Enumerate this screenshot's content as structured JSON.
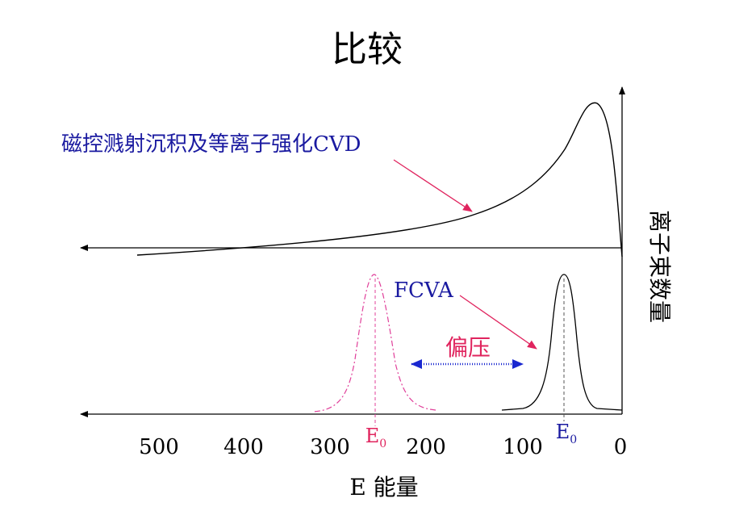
{
  "title": "比较",
  "curve_labels": {
    "magnetron": "磁控溅射沉积及等离子强化CVD",
    "fcva": "FCVA",
    "bias": "偏压"
  },
  "y_axis_label": "离子束数量",
  "x_axis_label": "E 能量",
  "x_ticks": [
    "0",
    "100",
    "200",
    "300",
    "400",
    "500"
  ],
  "e0_labels": [
    {
      "main": "E",
      "sub": "0"
    },
    {
      "main": "E",
      "sub": "0"
    }
  ],
  "colors": {
    "axis": "#000000",
    "curve": "#000000",
    "label_blue": "#1a1aa0",
    "label_red": "#e0245e",
    "arrow_red": "#e0245e",
    "arrow_blue": "#1a28d0",
    "shifted_peak": "#e0409a"
  }
}
